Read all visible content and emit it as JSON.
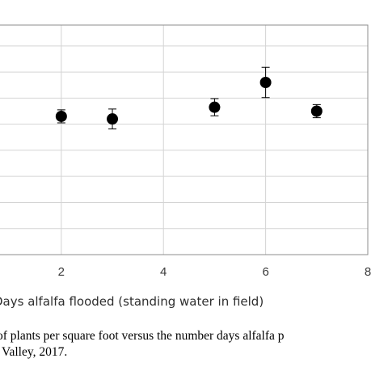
{
  "chart_data": {
    "type": "scatter",
    "title": "",
    "xlabel": "Days alfalfa flooded (standing water in field)",
    "ylabel": "",
    "x_ticks": [
      "2",
      "4",
      "6",
      "8"
    ],
    "xlim": [
      0.8,
      8
    ],
    "ylim": [
      0,
      8.8
    ],
    "grid": true,
    "series": [
      {
        "points": [
          {
            "x": 2,
            "y": 5.3,
            "err": 0.25
          },
          {
            "x": 3,
            "y": 5.2,
            "err": 0.38
          },
          {
            "x": 5,
            "y": 5.65,
            "err": 0.33
          },
          {
            "x": 6,
            "y": 6.6,
            "err": 0.58
          },
          {
            "x": 7,
            "y": 5.5,
            "err": 0.25
          }
        ]
      }
    ]
  },
  "caption": {
    "line1": "of plants per square foot versus the number days alfalfa p",
    "line2": "Valley, 2017."
  }
}
